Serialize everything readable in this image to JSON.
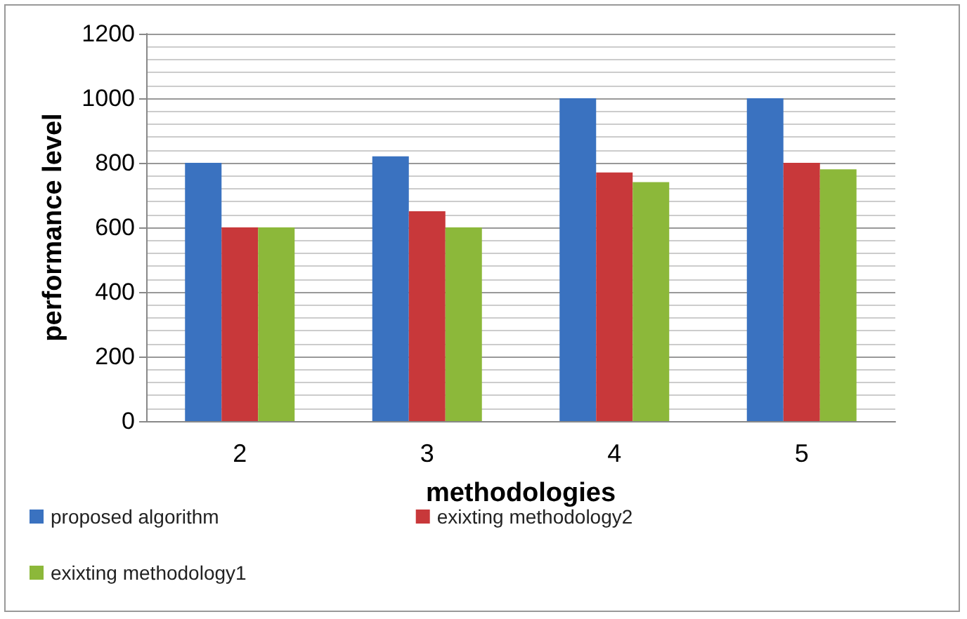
{
  "chart_data": {
    "type": "bar",
    "xlabel": "methodologies",
    "ylabel": "performance level",
    "categories": [
      "2",
      "3",
      "4",
      "5"
    ],
    "series": [
      {
        "name": "proposed algorithm",
        "color": "#3a72c0",
        "values": [
          800,
          820,
          1000,
          1000
        ]
      },
      {
        "name": "exixting methodology2",
        "color": "#c8383a",
        "values": [
          600,
          650,
          770,
          800
        ]
      },
      {
        "name": "exixting methodology1",
        "color": "#8cb83a",
        "values": [
          600,
          600,
          740,
          780
        ]
      }
    ],
    "ylim": [
      0,
      1200
    ],
    "yticks": [
      0,
      200,
      400,
      600,
      800,
      1000,
      1200
    ],
    "grid": true,
    "legend": "bottom"
  }
}
